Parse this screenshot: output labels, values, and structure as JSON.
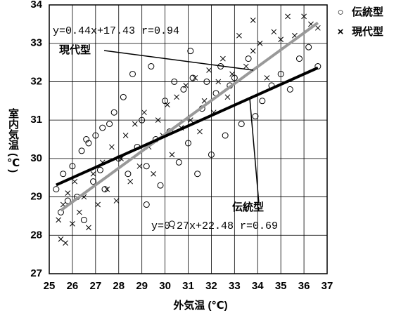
{
  "chart_data": {
    "type": "scatter",
    "xlabel": "外気温 (℃)",
    "ylabel": "室内気温 (℃)",
    "xlim": [
      25,
      37
    ],
    "ylim": [
      27,
      34
    ],
    "xticks": [
      25,
      26,
      27,
      28,
      29,
      30,
      31,
      32,
      33,
      34,
      35,
      36,
      37
    ],
    "yticks": [
      27,
      28,
      29,
      30,
      31,
      32,
      33,
      34
    ],
    "grid": true,
    "legend": "outside-right",
    "series": [
      {
        "name": "伝統型",
        "marker": "○",
        "color": "#000000",
        "x": [
          25.3,
          25.5,
          25.6,
          25.8,
          26.0,
          26.2,
          26.4,
          26.5,
          26.7,
          26.9,
          27.0,
          27.2,
          27.4,
          27.6,
          27.8,
          28.0,
          28.2,
          28.4,
          28.6,
          28.8,
          29.0,
          29.2,
          29.4,
          29.6,
          29.8,
          30.0,
          30.2,
          30.4,
          30.6,
          30.8,
          31.0,
          31.2,
          31.4,
          31.6,
          31.8,
          32.0,
          32.2,
          32.4,
          32.6,
          32.8,
          33.0,
          33.3,
          33.6,
          33.9,
          34.2,
          34.6,
          35.0,
          35.4,
          35.8,
          36.2,
          36.6,
          29.2,
          30.3,
          31.1,
          26.6,
          27.3
        ],
        "values": [
          29.2,
          28.6,
          29.6,
          28.9,
          29.8,
          29.0,
          30.2,
          28.4,
          30.4,
          29.4,
          30.6,
          29.7,
          29.2,
          30.9,
          31.2,
          30.0,
          31.6,
          29.6,
          32.2,
          30.3,
          31.0,
          29.8,
          32.4,
          30.5,
          29.3,
          31.5,
          30.7,
          32.0,
          29.9,
          31.8,
          30.4,
          32.1,
          29.6,
          31.3,
          32.0,
          30.1,
          31.7,
          32.4,
          30.6,
          31.9,
          32.1,
          30.9,
          32.6,
          31.1,
          31.5,
          31.9,
          32.2,
          31.8,
          32.6,
          32.9,
          32.4,
          28.8,
          28.3,
          32.8,
          30.5,
          30.8
        ]
      },
      {
        "name": "現代型",
        "marker": "×",
        "color": "#000000",
        "x": [
          25.4,
          25.5,
          25.6,
          25.7,
          25.8,
          26.0,
          26.1,
          26.3,
          26.5,
          26.7,
          26.9,
          27.1,
          27.3,
          27.5,
          27.7,
          27.9,
          28.1,
          28.3,
          28.5,
          28.7,
          28.9,
          29.1,
          29.3,
          29.5,
          29.7,
          29.9,
          30.1,
          30.3,
          30.5,
          30.7,
          30.9,
          31.1,
          31.3,
          31.5,
          31.7,
          31.9,
          32.1,
          32.3,
          32.5,
          32.7,
          32.9,
          33.2,
          33.5,
          33.8,
          34.1,
          34.4,
          34.7,
          35.0,
          35.3,
          35.6,
          36.0,
          36.3,
          36.6,
          33.8
        ],
        "values": [
          28.4,
          27.9,
          28.8,
          27.8,
          29.1,
          28.3,
          29.4,
          28.6,
          29.0,
          28.2,
          29.6,
          28.8,
          29.9,
          29.2,
          30.3,
          28.9,
          30.0,
          30.6,
          29.4,
          30.9,
          29.8,
          31.2,
          30.3,
          29.6,
          31.0,
          30.6,
          31.4,
          30.1,
          31.6,
          30.8,
          31.9,
          31.0,
          32.1,
          30.7,
          31.5,
          32.3,
          31.2,
          32.0,
          32.6,
          31.6,
          32.2,
          33.2,
          32.4,
          32.8,
          33.0,
          32.1,
          33.3,
          33.1,
          33.7,
          33.2,
          33.7,
          33.5,
          33.4,
          33.6
        ]
      }
    ],
    "trendlines": [
      {
        "label": "現代型",
        "equation": "y=0.44x+17.43  r=0.94",
        "slope": 0.44,
        "intercept": 17.43,
        "xrange": [
          25.5,
          36.6
        ],
        "color": "#999999"
      },
      {
        "label": "伝統型",
        "equation": "y=0.27x+22.48  r=0.69",
        "slope": 0.27,
        "intercept": 22.48,
        "xrange": [
          25.3,
          36.6
        ],
        "color": "#000000"
      }
    ]
  }
}
